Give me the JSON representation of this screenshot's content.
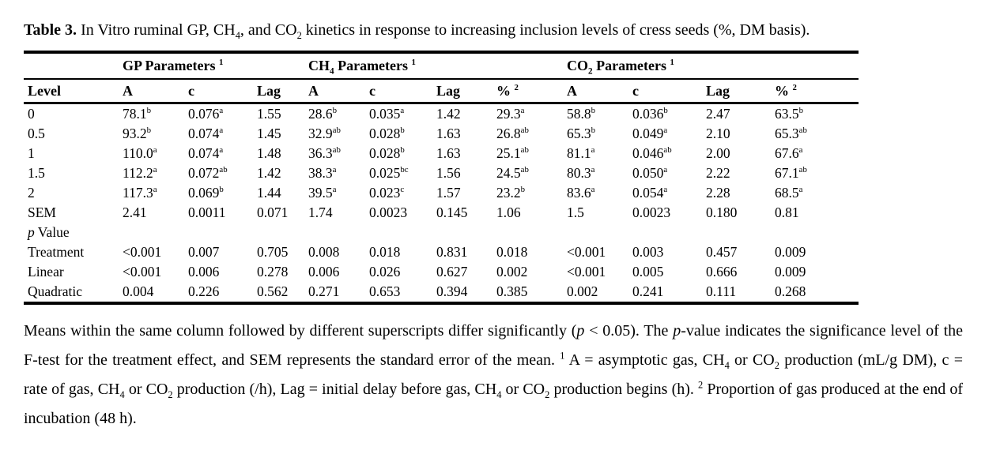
{
  "caption": {
    "label": "Table 3.",
    "text": "In Vitro ruminal GP, CH~4~, and CO~2~ kinetics in response to increasing inclusion levels of cress seeds (%, DM basis)."
  },
  "table": {
    "group_headers": [
      {
        "label": "",
        "span": 1
      },
      {
        "label": "GP Parameters ^1^",
        "span": 3
      },
      {
        "label": "CH~4~ Parameters ^1^",
        "span": 4
      },
      {
        "label": "CO~2~ Parameters ^1^",
        "span": 4
      }
    ],
    "column_headers": [
      "Level",
      "A",
      "c",
      "Lag",
      "A",
      "c",
      "Lag",
      "% ^2^",
      "A",
      "c",
      "Lag",
      "% ^2^"
    ],
    "rows": [
      [
        "0",
        "78.1^b^",
        "0.076^a^",
        "1.55",
        "28.6^b^",
        "0.035^a^",
        "1.42",
        "29.3^a^",
        "58.8^b^",
        "0.036^b^",
        "2.47",
        "63.5^b^"
      ],
      [
        "0.5",
        "93.2^b^",
        "0.074^a^",
        "1.45",
        "32.9^ab^",
        "0.028^b^",
        "1.63",
        "26.8^ab^",
        "65.3^b^",
        "0.049^a^",
        "2.10",
        "65.3^ab^"
      ],
      [
        "1",
        "110.0^a^",
        "0.074^a^",
        "1.48",
        "36.3^ab^",
        "0.028^b^",
        "1.63",
        "25.1^ab^",
        "81.1^a^",
        "0.046^ab^",
        "2.00",
        "67.6^a^"
      ],
      [
        "1.5",
        "112.2^a^",
        "0.072^ab^",
        "1.42",
        "38.3^a^",
        "0.025^bc^",
        "1.56",
        "24.5^ab^",
        "80.3^a^",
        "0.050^a^",
        "2.22",
        "67.1^ab^"
      ],
      [
        "2",
        "117.3^a^",
        "0.069^b^",
        "1.44",
        "39.5^a^",
        "0.023^c^",
        "1.57",
        "23.2^b^",
        "83.6^a^",
        "0.054^a^",
        "2.28",
        "68.5^a^"
      ],
      [
        "SEM",
        "2.41",
        "0.0011",
        "0.071",
        "1.74",
        "0.0023",
        "0.145",
        "1.06",
        "1.5",
        "0.0023",
        "0.180",
        "0.81"
      ],
      [
        "*p* Value",
        "",
        "",
        "",
        "",
        "",
        "",
        "",
        "",
        "",
        "",
        ""
      ],
      [
        "Treatment",
        "<0.001",
        "0.007",
        "0.705",
        "0.008",
        "0.018",
        "0.831",
        "0.018",
        "<0.001",
        "0.003",
        "0.457",
        "0.009"
      ],
      [
        "Linear",
        "<0.001",
        "0.006",
        "0.278",
        "0.006",
        "0.026",
        "0.627",
        "0.002",
        "<0.001",
        "0.005",
        "0.666",
        "0.009"
      ],
      [
        "Quadratic",
        "0.004",
        "0.226",
        "0.562",
        "0.271",
        "0.653",
        "0.394",
        "0.385",
        "0.002",
        "0.241",
        "0.111",
        "0.268"
      ]
    ]
  },
  "footnote": "Means within the same column followed by different superscripts differ significantly (*p* < 0.05). The *p*-value indicates the significance level of the F-test for the treatment effect, and SEM represents the standard error of the mean. ^1^ A = asymptotic gas, CH~4~ or CO~2~ production (mL/g DM), c = rate of gas, CH~4~ or CO~2~ production (/h), Lag = initial delay before gas, CH~4~ or CO~2~ production begins (h). ^2^ Proportion of gas produced at the end of incubation (48 h).",
  "colors": {
    "text": "#000000",
    "background": "#ffffff",
    "rule": "#000000"
  }
}
